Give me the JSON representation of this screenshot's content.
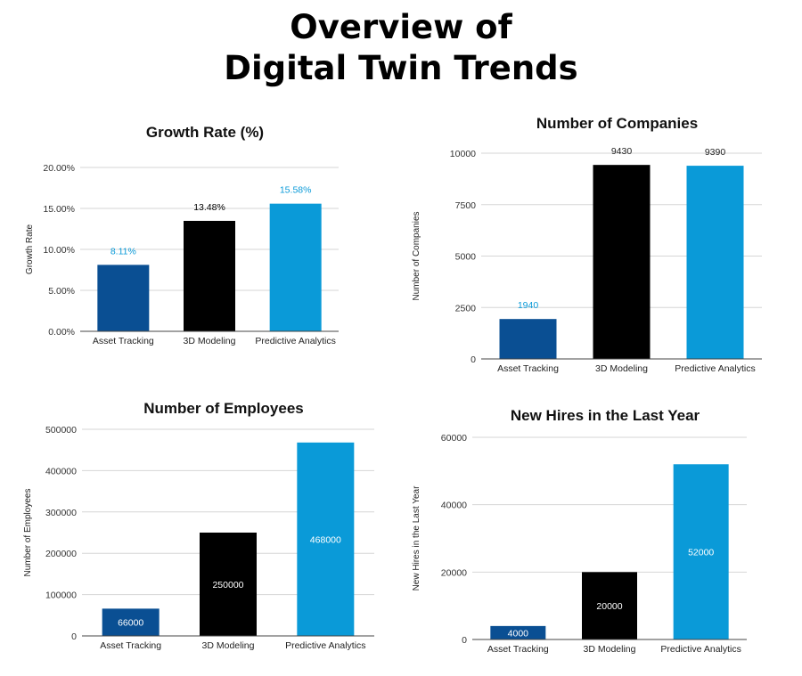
{
  "title": {
    "line1": "Overview of",
    "line2": "Digital Twin Trends"
  },
  "colors": {
    "asset": "#0a4f93",
    "modeling": "#000000",
    "predictive": "#0a9ad8"
  },
  "chart_data": [
    {
      "type": "bar",
      "title": "Growth Rate (%)",
      "xlabel": "",
      "ylabel": "Growth Rate",
      "categories": [
        "Asset Tracking",
        "3D Modeling",
        "Predictive Analytics"
      ],
      "values": [
        8.11,
        13.48,
        15.58
      ],
      "value_labels": [
        "8.11%",
        "13.48%",
        "15.58%"
      ],
      "ylim": [
        0,
        20
      ],
      "yticks": [
        0,
        5,
        10,
        15,
        20
      ],
      "ytick_labels": [
        "0.00%",
        "5.00%",
        "10.00%",
        "15.00%",
        "20.00%"
      ],
      "label_position": "above",
      "grid": true
    },
    {
      "type": "bar",
      "title": "Number of Companies",
      "xlabel": "",
      "ylabel": "Number of Companies",
      "categories": [
        "Asset Tracking",
        "3D Modeling",
        "Predictive Analytics"
      ],
      "values": [
        1940,
        9430,
        9390
      ],
      "value_labels": [
        "1940",
        "9430",
        "9390"
      ],
      "ylim": [
        0,
        10000
      ],
      "yticks": [
        0,
        2500,
        5000,
        7500,
        10000
      ],
      "ytick_labels": [
        "0",
        "2500",
        "5000",
        "7500",
        "10000"
      ],
      "label_position": "above",
      "grid": true
    },
    {
      "type": "bar",
      "title": "Number of Employees",
      "xlabel": "",
      "ylabel": "Number of Employees",
      "categories": [
        "Asset Tracking",
        "3D Modeling",
        "Predictive Analytics"
      ],
      "values": [
        66000,
        250000,
        468000
      ],
      "value_labels": [
        "66000",
        "250000",
        "468000"
      ],
      "ylim": [
        0,
        500000
      ],
      "yticks": [
        0,
        100000,
        200000,
        300000,
        400000,
        500000
      ],
      "ytick_labels": [
        "0",
        "100000",
        "200000",
        "300000",
        "400000",
        "500000"
      ],
      "label_position": "inside",
      "grid": true
    },
    {
      "type": "bar",
      "title": "New Hires in the Last Year",
      "xlabel": "",
      "ylabel": "New Hires in the Last Year",
      "categories": [
        "Asset Tracking",
        "3D Modeling",
        "Predictive Analytics"
      ],
      "values": [
        4000,
        20000,
        52000
      ],
      "value_labels": [
        "4000",
        "20000",
        "52000"
      ],
      "ylim": [
        0,
        60000
      ],
      "yticks": [
        0,
        20000,
        40000,
        60000
      ],
      "ytick_labels": [
        "0",
        "20000",
        "40000",
        "60000"
      ],
      "label_position": "inside",
      "grid": true
    }
  ]
}
